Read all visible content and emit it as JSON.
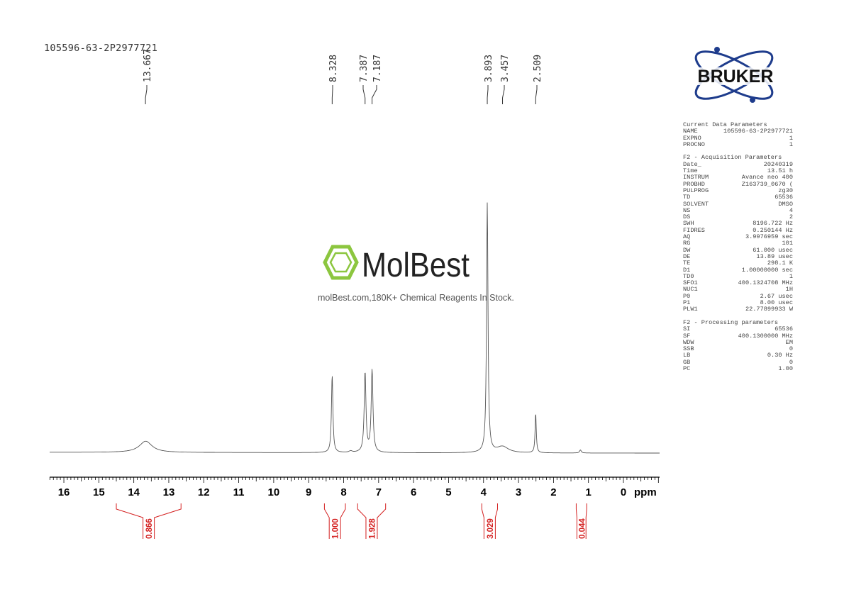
{
  "sample_name": "105596-63-2P2977721",
  "brand": {
    "bruker_logo_text": "BRUKER",
    "watermark_logo_text": "MolBest",
    "watermark_tagline": "molBest.com,180K+ Chemical Reagents In Stock.",
    "watermark_color": "#8cc63f"
  },
  "parameters": {
    "sections": [
      {
        "title": "Current Data Parameters",
        "rows": [
          [
            "NAME",
            "105596-63-2P2977721"
          ],
          [
            "EXPNO",
            "1"
          ],
          [
            "PROCNO",
            "1"
          ]
        ]
      },
      {
        "title": "F2 - Acquisition Parameters",
        "rows": [
          [
            "Date_",
            "20240319"
          ],
          [
            "Time",
            "13.51 h"
          ],
          [
            "INSTRUM",
            "Avance neo 400"
          ],
          [
            "PROBHD",
            "Z163739_0670 ("
          ],
          [
            "PULPROG",
            "zg30"
          ],
          [
            "TD",
            "65536"
          ],
          [
            "SOLVENT",
            "DMSO"
          ],
          [
            "NS",
            "4"
          ],
          [
            "DS",
            "2"
          ],
          [
            "SWH",
            "8196.722 Hz"
          ],
          [
            "FIDRES",
            "0.250144 Hz"
          ],
          [
            "AQ",
            "3.9976959 sec"
          ],
          [
            "RG",
            "101"
          ],
          [
            "DW",
            "61.000 usec"
          ],
          [
            "DE",
            "13.89 usec"
          ],
          [
            "TE",
            "298.1 K"
          ],
          [
            "D1",
            "1.00000000 sec"
          ],
          [
            "TD0",
            "1"
          ],
          [
            "SFO1",
            "400.1324708 MHz"
          ],
          [
            "NUC1",
            "1H"
          ],
          [
            "P0",
            "2.67 usec"
          ],
          [
            "P1",
            "8.00 usec"
          ],
          [
            "PLW1",
            "22.77899933 W"
          ]
        ]
      },
      {
        "title": "F2 - Processing parameters",
        "rows": [
          [
            "SI",
            "65536"
          ],
          [
            "SF",
            "400.1300000 MHz"
          ],
          [
            "WDW",
            "EM"
          ],
          [
            "SSB",
            "0"
          ],
          [
            "LB",
            "0.30 Hz"
          ],
          [
            "GB",
            "0"
          ],
          [
            "PC",
            "1.00"
          ]
        ]
      }
    ]
  },
  "chart_data": {
    "type": "line",
    "xlabel": "ppm",
    "xlim": [
      16.4,
      -1.0
    ],
    "x_reversed": true,
    "x_ticks": [
      "16",
      "15",
      "14",
      "13",
      "12",
      "11",
      "10",
      "9",
      "8",
      "7",
      "6",
      "5",
      "4",
      "3",
      "2",
      "1",
      "0"
    ],
    "peak_labels": [
      "13.667",
      "8.328",
      "7.387",
      "7.187",
      "3.893",
      "3.457",
      "2.509"
    ],
    "peak_label_positions_ppm": [
      13.667,
      8.328,
      7.387,
      7.187,
      3.893,
      3.457,
      2.509
    ],
    "peaks": [
      {
        "ppm": 13.66,
        "intensity": 0.045,
        "width": 0.22
      },
      {
        "ppm": 8.328,
        "intensity": 0.31,
        "width": 0.025
      },
      {
        "ppm": 7.387,
        "intensity": 0.32,
        "width": 0.03
      },
      {
        "ppm": 7.187,
        "intensity": 0.33,
        "width": 0.03
      },
      {
        "ppm": 3.893,
        "intensity": 1.0,
        "width": 0.025
      },
      {
        "ppm": 3.457,
        "intensity": 0.025,
        "width": 0.2
      },
      {
        "ppm": 2.509,
        "intensity": 0.16,
        "width": 0.02
      },
      {
        "ppm": 1.23,
        "intensity": 0.012,
        "width": 0.03
      },
      {
        "ppm": 7.8,
        "intensity": 0.006,
        "width": 0.05
      }
    ],
    "integrals": [
      {
        "label": "0.866",
        "from": 14.5,
        "to": 12.65
      },
      {
        "label": "1.000",
        "from": 8.55,
        "to": 7.95
      },
      {
        "label": "1.928",
        "from": 7.6,
        "to": 6.8
      },
      {
        "label": "3.029",
        "from": 4.05,
        "to": 3.6
      },
      {
        "label": "0.044",
        "from": 1.35,
        "to": 1.05
      }
    ],
    "integral_color": "#d42020",
    "trace_color": "#555555"
  }
}
